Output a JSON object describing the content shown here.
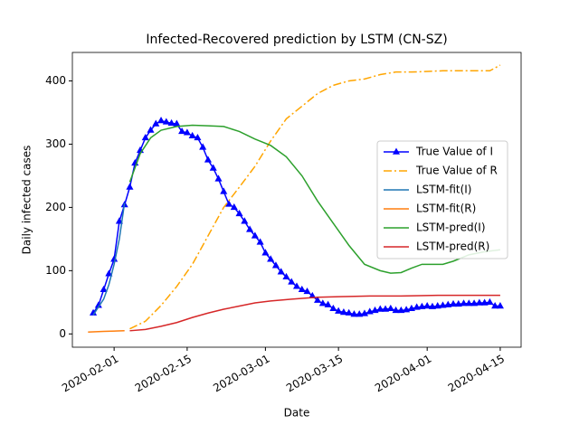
{
  "chart_data": {
    "type": "line",
    "title": "Infected-Recovered prediction by LSTM (CN-SZ)",
    "x_label": "Date",
    "y_label": "Daily infected cases",
    "xlim": [
      "2020-01-24",
      "2020-04-19"
    ],
    "ylim": [
      -21,
      445
    ],
    "xticks": [
      "2020-02-01",
      "2020-02-15",
      "2020-03-01",
      "2020-03-15",
      "2020-04-01",
      "2020-04-15"
    ],
    "yticks": [
      0,
      100,
      200,
      300,
      400
    ],
    "legend_loc": "center right",
    "series": [
      {
        "name": "True Value of I",
        "color": "#0000ff",
        "linestyle": "solid",
        "marker": "triangle",
        "x": [
          "2020-01-28",
          "2020-01-29",
          "2020-01-30",
          "2020-01-31",
          "2020-02-01",
          "2020-02-02",
          "2020-02-03",
          "2020-02-04",
          "2020-02-05",
          "2020-02-06",
          "2020-02-07",
          "2020-02-08",
          "2020-02-09",
          "2020-02-10",
          "2020-02-11",
          "2020-02-12",
          "2020-02-13",
          "2020-02-14",
          "2020-02-15",
          "2020-02-16",
          "2020-02-17",
          "2020-02-18",
          "2020-02-19",
          "2020-02-20",
          "2020-02-21",
          "2020-02-22",
          "2020-02-23",
          "2020-02-24",
          "2020-02-25",
          "2020-02-26",
          "2020-02-27",
          "2020-02-28",
          "2020-02-29",
          "2020-03-01",
          "2020-03-02",
          "2020-03-03",
          "2020-03-04",
          "2020-03-05",
          "2020-03-06",
          "2020-03-07",
          "2020-03-08",
          "2020-03-09",
          "2020-03-10",
          "2020-03-11",
          "2020-03-12",
          "2020-03-13",
          "2020-03-14",
          "2020-03-15",
          "2020-03-16",
          "2020-03-17",
          "2020-03-18",
          "2020-03-19",
          "2020-03-20",
          "2020-03-21",
          "2020-03-22",
          "2020-03-23",
          "2020-03-24",
          "2020-03-25",
          "2020-03-26",
          "2020-03-27",
          "2020-03-28",
          "2020-03-29",
          "2020-03-30",
          "2020-03-31",
          "2020-04-01",
          "2020-04-02",
          "2020-04-03",
          "2020-04-04",
          "2020-04-05",
          "2020-04-06",
          "2020-04-07",
          "2020-04-08",
          "2020-04-09",
          "2020-04-10",
          "2020-04-11",
          "2020-04-12",
          "2020-04-13",
          "2020-04-14",
          "2020-04-15"
        ],
        "values": [
          33,
          45,
          70,
          95,
          118,
          178,
          204,
          232,
          270,
          290,
          310,
          322,
          332,
          337,
          335,
          333,
          332,
          320,
          318,
          313,
          310,
          295,
          275,
          262,
          245,
          225,
          205,
          200,
          190,
          178,
          165,
          155,
          145,
          128,
          118,
          108,
          98,
          90,
          82,
          75,
          70,
          67,
          60,
          53,
          48,
          46,
          40,
          36,
          34,
          33,
          31,
          31,
          32,
          35,
          37,
          39,
          39,
          40,
          37,
          37,
          38,
          40,
          42,
          43,
          44,
          43,
          44,
          45,
          46,
          47,
          47,
          48,
          48,
          48,
          49,
          49,
          50,
          44,
          44
        ]
      },
      {
        "name": "True Value of R",
        "color": "#ffa500",
        "linestyle": "dashdot",
        "marker": "none",
        "x": [
          "2020-02-04",
          "2020-02-07",
          "2020-02-10",
          "2020-02-13",
          "2020-02-16",
          "2020-02-19",
          "2020-02-22",
          "2020-02-25",
          "2020-02-28",
          "2020-03-02",
          "2020-03-05",
          "2020-03-08",
          "2020-03-11",
          "2020-03-14",
          "2020-03-17",
          "2020-03-20",
          "2020-03-23",
          "2020-03-26",
          "2020-03-29",
          "2020-04-01",
          "2020-04-04",
          "2020-04-07",
          "2020-04-10",
          "2020-04-13",
          "2020-04-15"
        ],
        "values": [
          8,
          20,
          45,
          75,
          110,
          155,
          200,
          232,
          265,
          305,
          340,
          360,
          380,
          393,
          400,
          403,
          410,
          414,
          414,
          415,
          416,
          416,
          416,
          416,
          425
        ]
      },
      {
        "name": "LSTM-fit(I)",
        "color": "#1f77b4",
        "linestyle": "solid",
        "marker": "none",
        "x": [
          "2020-01-28",
          "2020-01-30",
          "2020-01-31",
          "2020-02-01",
          "2020-02-02",
          "2020-02-03"
        ],
        "values": [
          30,
          55,
          78,
          110,
          150,
          207
        ]
      },
      {
        "name": "LSTM-fit(R)",
        "color": "#ff7f0e",
        "linestyle": "solid",
        "marker": "none",
        "x": [
          "2020-01-27",
          "2020-01-30",
          "2020-02-03"
        ],
        "values": [
          3,
          4,
          5
        ]
      },
      {
        "name": "LSTM-pred(I)",
        "color": "#2ca02c",
        "linestyle": "solid",
        "marker": "none",
        "x": [
          "2020-02-04",
          "2020-02-06",
          "2020-02-08",
          "2020-02-10",
          "2020-02-13",
          "2020-02-16",
          "2020-02-19",
          "2020-02-22",
          "2020-02-25",
          "2020-02-28",
          "2020-03-02",
          "2020-03-05",
          "2020-03-08",
          "2020-03-11",
          "2020-03-14",
          "2020-03-17",
          "2020-03-20",
          "2020-03-23",
          "2020-03-25",
          "2020-03-27",
          "2020-03-29",
          "2020-03-31",
          "2020-04-02",
          "2020-04-04",
          "2020-04-06",
          "2020-04-09",
          "2020-04-12",
          "2020-04-15"
        ],
        "values": [
          240,
          285,
          310,
          322,
          328,
          330,
          329,
          328,
          320,
          308,
          298,
          280,
          250,
          210,
          175,
          140,
          110,
          100,
          96,
          97,
          104,
          110,
          110,
          110,
          115,
          125,
          130,
          133
        ]
      },
      {
        "name": "LSTM-pred(R)",
        "color": "#d62728",
        "linestyle": "solid",
        "marker": "none",
        "x": [
          "2020-02-04",
          "2020-02-07",
          "2020-02-10",
          "2020-02-13",
          "2020-02-16",
          "2020-02-19",
          "2020-02-22",
          "2020-02-25",
          "2020-02-28",
          "2020-03-02",
          "2020-03-06",
          "2020-03-11",
          "2020-03-16",
          "2020-03-21",
          "2020-03-27",
          "2020-04-03",
          "2020-04-09",
          "2020-04-15"
        ],
        "values": [
          5,
          7,
          12,
          18,
          26,
          33,
          39,
          44,
          49,
          52,
          55,
          58,
          59,
          60,
          60,
          61,
          61,
          61
        ]
      }
    ]
  }
}
